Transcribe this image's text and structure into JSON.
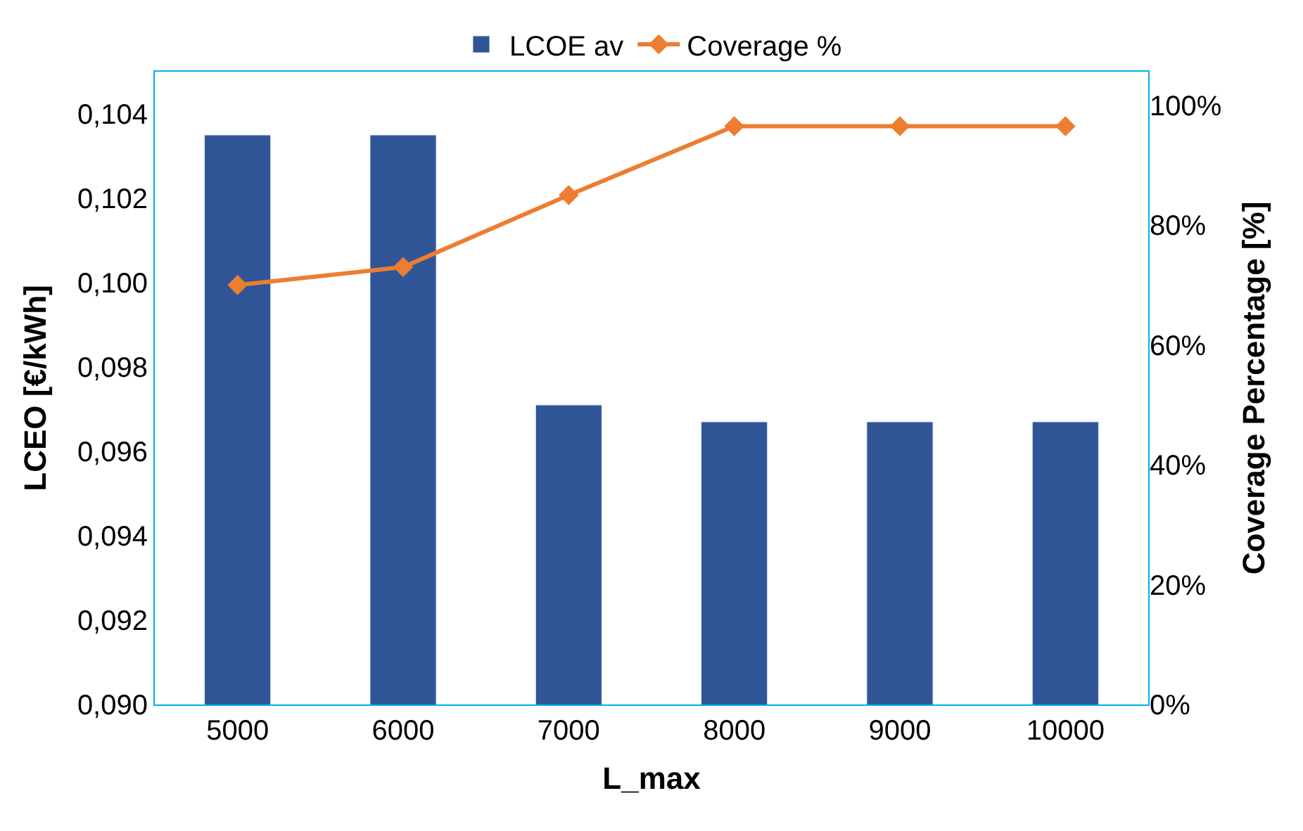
{
  "chart_data": {
    "type": "bar",
    "xlabel": "L_max",
    "ylabel": "LCEO [€/kWh]",
    "y2label": "Coverage Percentage [%]",
    "categories": [
      "5000",
      "6000",
      "7000",
      "8000",
      "9000",
      "10000"
    ],
    "series": [
      {
        "name": "LCOE av",
        "color": "#2f5597",
        "values": [
          0.1035,
          0.1035,
          0.0971,
          0.0967,
          0.0967,
          0.0967
        ]
      },
      {
        "name": "Coverage %",
        "type": "line",
        "axis": "y2",
        "color": "#ed7d31",
        "marker": "diamond",
        "values": [
          70,
          73,
          85,
          96.5,
          96.5,
          96.5
        ]
      }
    ],
    "ylim": [
      0.09,
      0.105
    ],
    "yticks": [
      {
        "value": 0.09,
        "label": "0,090"
      },
      {
        "value": 0.092,
        "label": "0,092"
      },
      {
        "value": 0.094,
        "label": "0,094"
      },
      {
        "value": 0.096,
        "label": "0,096"
      },
      {
        "value": 0.098,
        "label": "0,098"
      },
      {
        "value": 0.1,
        "label": "0,100"
      },
      {
        "value": 0.102,
        "label": "0,102"
      },
      {
        "value": 0.104,
        "label": "0,104"
      }
    ],
    "y2lim": [
      0,
      105.6
    ],
    "y2ticks": [
      {
        "value": 0,
        "label": "0%"
      },
      {
        "value": 20,
        "label": "20%"
      },
      {
        "value": 40,
        "label": "40%"
      },
      {
        "value": 60,
        "label": "60%"
      },
      {
        "value": 80,
        "label": "80%"
      },
      {
        "value": 100,
        "label": "100%"
      }
    ],
    "grid": false,
    "legend": "top"
  }
}
